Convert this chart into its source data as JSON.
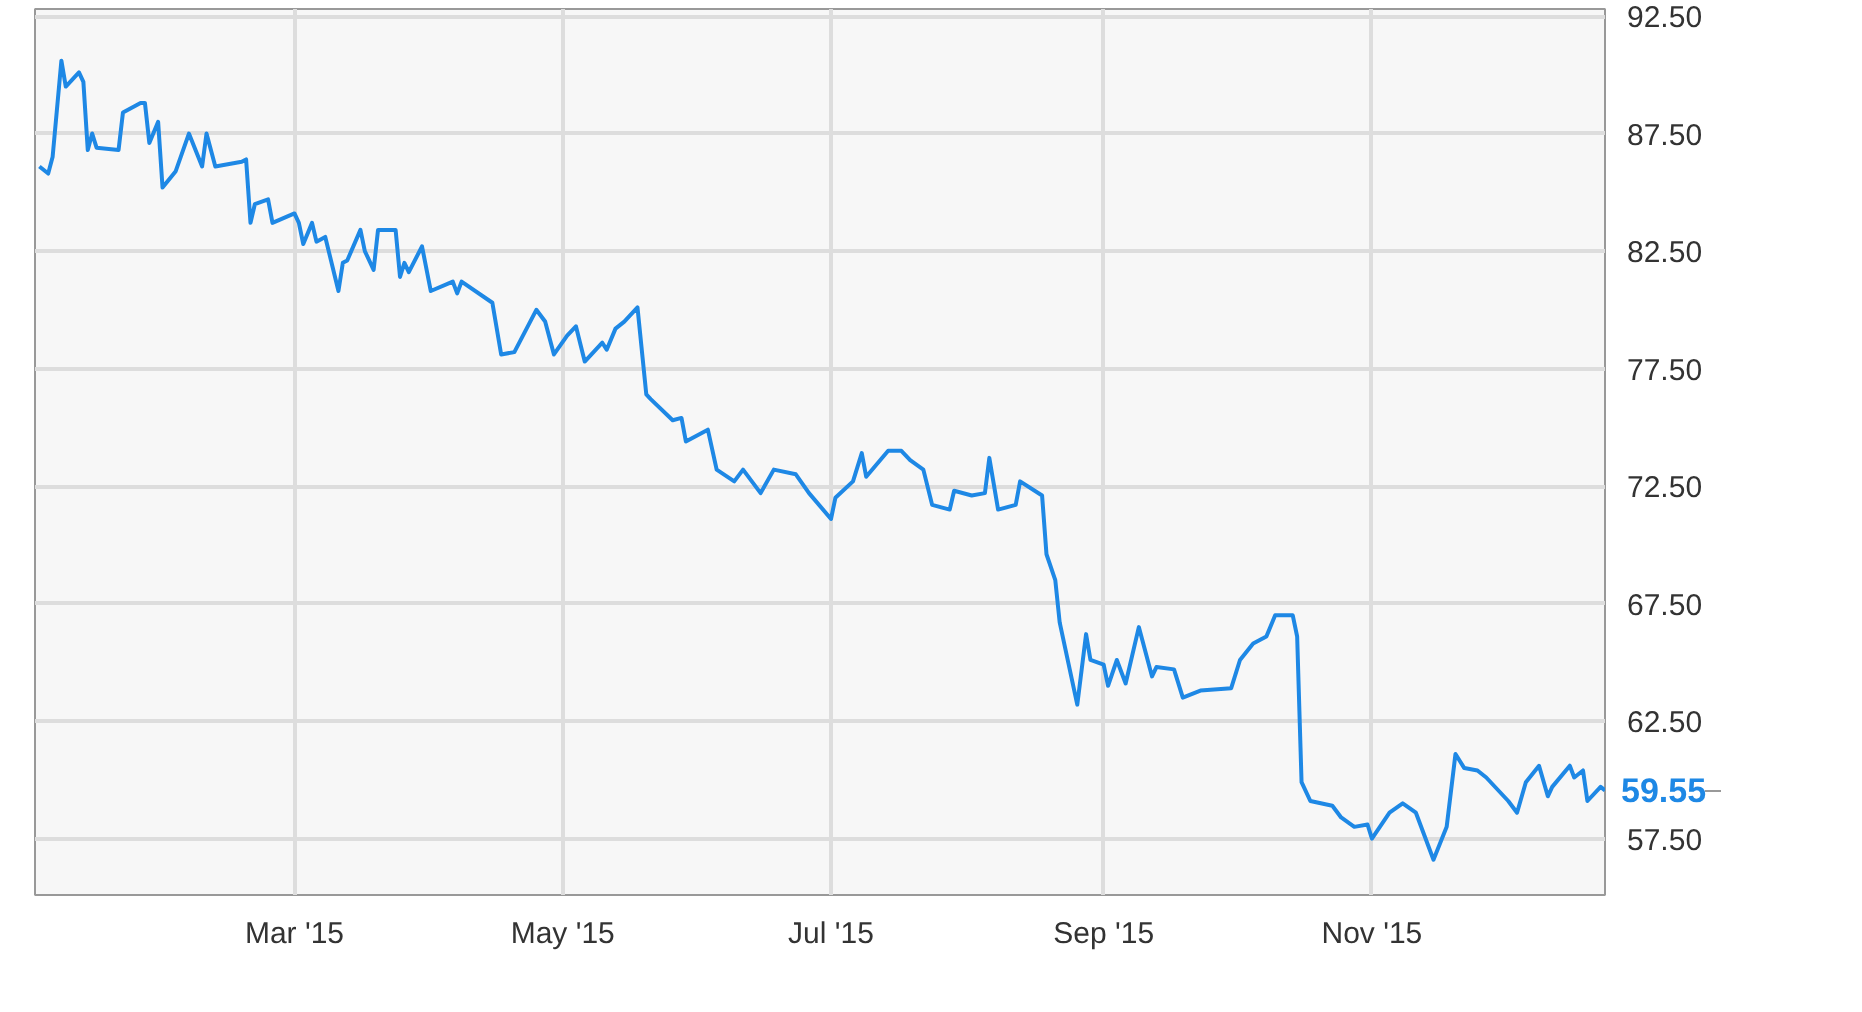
{
  "chart_data": {
    "type": "line",
    "x": [
      "2015-01-02",
      "2015-01-04",
      "2015-01-05",
      "2015-01-07",
      "2015-01-08",
      "2015-01-11",
      "2015-01-12",
      "2015-01-13",
      "2015-01-14",
      "2015-01-15",
      "2015-01-20",
      "2015-01-21",
      "2015-01-25",
      "2015-01-26",
      "2015-01-27",
      "2015-01-29",
      "2015-01-30",
      "2015-02-02",
      "2015-02-05",
      "2015-02-08",
      "2015-02-09",
      "2015-02-11",
      "2015-02-17",
      "2015-02-18",
      "2015-02-19",
      "2015-02-20",
      "2015-02-23",
      "2015-02-24",
      "2015-03-01",
      "2015-03-02",
      "2015-03-03",
      "2015-03-05",
      "2015-03-06",
      "2015-03-08",
      "2015-03-11",
      "2015-03-12",
      "2015-03-13",
      "2015-03-16",
      "2015-03-17",
      "2015-03-19",
      "2015-03-20",
      "2015-03-24",
      "2015-03-25",
      "2015-03-26",
      "2015-03-27",
      "2015-03-30",
      "2015-04-01",
      "2015-04-06",
      "2015-04-07",
      "2015-04-08",
      "2015-04-15",
      "2015-04-17",
      "2015-04-20",
      "2015-04-25",
      "2015-04-27",
      "2015-04-29",
      "2015-05-02",
      "2015-05-04",
      "2015-05-06",
      "2015-05-10",
      "2015-05-11",
      "2015-05-13",
      "2015-05-15",
      "2015-05-18",
      "2015-05-20",
      "2015-05-21",
      "2015-05-26",
      "2015-05-28",
      "2015-05-29",
      "2015-06-03",
      "2015-06-05",
      "2015-06-09",
      "2015-06-11",
      "2015-06-15",
      "2015-06-18",
      "2015-06-23",
      "2015-06-26",
      "2015-07-01",
      "2015-07-02",
      "2015-07-06",
      "2015-07-08",
      "2015-07-09",
      "2015-07-14",
      "2015-07-17",
      "2015-07-19",
      "2015-07-22",
      "2015-07-24",
      "2015-07-28",
      "2015-07-29",
      "2015-08-02",
      "2015-08-05",
      "2015-08-06",
      "2015-08-08",
      "2015-08-12",
      "2015-08-13",
      "2015-08-18",
      "2015-08-19",
      "2015-08-21",
      "2015-08-22",
      "2015-08-26",
      "2015-08-28",
      "2015-08-29",
      "2015-09-01",
      "2015-09-02",
      "2015-09-04",
      "2015-09-06",
      "2015-09-09",
      "2015-09-12",
      "2015-09-13",
      "2015-09-17",
      "2015-09-19",
      "2015-09-23",
      "2015-09-30",
      "2015-10-02",
      "2015-10-05",
      "2015-10-08",
      "2015-10-10",
      "2015-10-14",
      "2015-10-15",
      "2015-10-16",
      "2015-10-18",
      "2015-10-23",
      "2015-10-25",
      "2015-10-28",
      "2015-10-31",
      "2015-11-01",
      "2015-11-05",
      "2015-11-08",
      "2015-11-11",
      "2015-11-15",
      "2015-11-18",
      "2015-11-20",
      "2015-11-22",
      "2015-11-25",
      "2015-11-27",
      "2015-12-02",
      "2015-12-04",
      "2015-12-06",
      "2015-12-09",
      "2015-12-11",
      "2015-12-12",
      "2015-12-16",
      "2015-12-17",
      "2015-12-19",
      "2015-12-20",
      "2015-12-23",
      "2015-12-24"
    ],
    "series": [
      {
        "color": "#1e88e5",
        "values": [
          86.1,
          85.8,
          86.5,
          90.6,
          89.5,
          90.1,
          89.7,
          86.8,
          87.5,
          86.9,
          86.8,
          88.4,
          88.8,
          88.8,
          87.1,
          88.0,
          85.2,
          85.9,
          87.5,
          86.1,
          87.5,
          86.1,
          86.3,
          86.4,
          83.7,
          84.5,
          84.7,
          83.7,
          84.1,
          83.7,
          82.8,
          83.7,
          82.9,
          83.1,
          80.8,
          82.0,
          82.1,
          83.4,
          82.5,
          81.7,
          83.4,
          83.4,
          81.4,
          82.0,
          81.6,
          82.7,
          80.8,
          81.2,
          80.7,
          81.2,
          80.3,
          78.1,
          78.2,
          80.0,
          79.5,
          78.1,
          78.9,
          79.3,
          77.8,
          78.6,
          78.3,
          79.2,
          79.5,
          80.1,
          76.4,
          76.2,
          75.3,
          75.4,
          74.4,
          74.9,
          73.2,
          72.7,
          73.2,
          72.2,
          73.2,
          73.0,
          72.2,
          71.1,
          72.0,
          72.7,
          73.9,
          72.9,
          74.0,
          74.0,
          73.6,
          73.2,
          71.7,
          71.5,
          72.3,
          72.1,
          72.2,
          73.7,
          71.5,
          71.7,
          72.7,
          72.1,
          69.6,
          68.5,
          66.7,
          63.2,
          66.2,
          65.1,
          64.9,
          64.0,
          65.1,
          64.1,
          66.5,
          64.4,
          64.8,
          64.7,
          63.5,
          63.8,
          63.9,
          65.1,
          65.8,
          66.1,
          67.0,
          67.0,
          66.1,
          59.9,
          59.1,
          58.9,
          58.4,
          58.0,
          58.1,
          57.5,
          58.6,
          59.0,
          58.6,
          56.6,
          58.0,
          61.1,
          60.5,
          60.4,
          60.1,
          59.1,
          58.6,
          59.9,
          60.6,
          59.3,
          59.7,
          60.6,
          60.1,
          60.4,
          59.1,
          59.7,
          59.55
        ]
      }
    ],
    "xlim": [
      "2015-01-01",
      "2015-12-24"
    ],
    "xticks": [
      {
        "value": "2015-03-01",
        "label": "Mar '15"
      },
      {
        "value": "2015-05-01",
        "label": "May '15"
      },
      {
        "value": "2015-07-01",
        "label": "Jul '15"
      },
      {
        "value": "2015-09-01",
        "label": "Sep '15"
      },
      {
        "value": "2015-11-01",
        "label": "Nov '15"
      }
    ],
    "ylim": [
      55.1,
      92.8
    ],
    "yticks": [
      {
        "value": 57.5,
        "label": "57.50"
      },
      {
        "value": 62.5,
        "label": "62.50"
      },
      {
        "value": 67.5,
        "label": "67.50"
      },
      {
        "value": 72.5,
        "label": "72.50"
      },
      {
        "value": 77.5,
        "label": "77.50"
      },
      {
        "value": 82.5,
        "label": "82.50"
      },
      {
        "value": 87.5,
        "label": "87.50"
      },
      {
        "value": 92.5,
        "label": "92.50"
      }
    ],
    "grid": true,
    "marker": "none",
    "line_style": "solid",
    "annotations": [
      "59.55"
    ]
  }
}
